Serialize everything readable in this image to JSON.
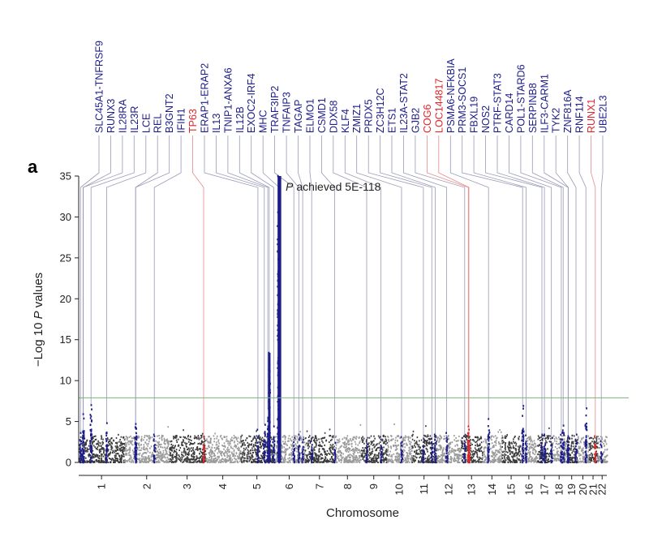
{
  "panel_label": "a",
  "chart_data": {
    "type": "scatter",
    "title": "",
    "xlabel": "Chromosome",
    "ylabel_prefix": "−Log 10 ",
    "ylabel_italic": "P",
    "ylabel_suffix": " values",
    "ylim": [
      0,
      35
    ],
    "yticks": [
      0,
      5,
      10,
      15,
      20,
      25,
      30,
      35
    ],
    "significance_line": 7.9,
    "annotation": {
      "italic": "P",
      "text": " achieved 5E-118",
      "chromosome": 6,
      "y": 33.7
    },
    "colors": {
      "chrom_dark": "#3a3a3a",
      "chrom_light": "#9a9a9a",
      "known_locus": "#1c1c8a",
      "new_locus": "#e0262b",
      "sig_line": "#7fae7f",
      "leader_known": "#9a9ab8",
      "leader_new": "#e88a8a"
    },
    "chromosomes": [
      {
        "label": "1",
        "len": 249
      },
      {
        "label": "2",
        "len": 243
      },
      {
        "label": "3",
        "len": 198
      },
      {
        "label": "4",
        "len": 191
      },
      {
        "label": "5",
        "len": 181
      },
      {
        "label": "6",
        "len": 171
      },
      {
        "label": "7",
        "len": 159
      },
      {
        "label": "8",
        "len": 146
      },
      {
        "label": "9",
        "len": 141
      },
      {
        "label": "10",
        "len": 136
      },
      {
        "label": "11",
        "len": 135
      },
      {
        "label": "12",
        "len": 134
      },
      {
        "label": "13",
        "len": 115
      },
      {
        "label": "14",
        "len": 107
      },
      {
        "label": "15",
        "len": 103
      },
      {
        "label": "16",
        "len": 90
      },
      {
        "label": "17",
        "len": 81
      },
      {
        "label": "18",
        "len": 78
      },
      {
        "label": "19",
        "len": 59
      },
      {
        "label": "20",
        "len": 63
      },
      {
        "label": "21",
        "len": 48
      },
      {
        "label": "22",
        "len": 51
      }
    ],
    "loci": [
      {
        "label": "SLC45A1-TNFRSF9",
        "chrom": 1,
        "pos": 10,
        "peak": 3.6,
        "novel": false
      },
      {
        "label": "RUNX3",
        "chrom": 1,
        "pos": 25,
        "peak": 3.0,
        "novel": false
      },
      {
        "label": "IL28RA",
        "chrom": 1,
        "pos": 24,
        "peak": 5.9,
        "novel": false
      },
      {
        "label": "IL23R",
        "chrom": 1,
        "pos": 67,
        "peak": 7.0,
        "novel": false
      },
      {
        "label": "LCE",
        "chrom": 1,
        "pos": 152,
        "peak": 4.8,
        "novel": false
      },
      {
        "label": "REL",
        "chrom": 2,
        "pos": 61,
        "peak": 4.3,
        "novel": false
      },
      {
        "label": "B3GNT2",
        "chrom": 2,
        "pos": 62,
        "peak": 4.7,
        "novel": false
      },
      {
        "label": "IFIH1",
        "chrom": 2,
        "pos": 163,
        "peak": 3.4,
        "novel": false
      },
      {
        "label": "TP63",
        "chrom": 3,
        "pos": 189,
        "peak": 3.0,
        "novel": true
      },
      {
        "label": "ERAP1-ERAP2",
        "chrom": 5,
        "pos": 96,
        "peak": 4.0,
        "novel": false
      },
      {
        "label": "IL13",
        "chrom": 5,
        "pos": 131,
        "peak": 4.6,
        "novel": false
      },
      {
        "label": "TNIP1-ANXA6",
        "chrom": 5,
        "pos": 150,
        "peak": 6.5,
        "novel": false
      },
      {
        "label": "IL12B",
        "chrom": 5,
        "pos": 158,
        "peak": 13.4,
        "novel": false
      },
      {
        "label": "EXOC2-IRF4",
        "chrom": 6,
        "pos": 1,
        "peak": 4.4,
        "novel": false
      },
      {
        "label": "MHC",
        "chrom": 6,
        "pos": 31,
        "peak": 35,
        "novel": false
      },
      {
        "label": "TRAF3IP2",
        "chrom": 6,
        "pos": 111,
        "peak": 3.0,
        "novel": false
      },
      {
        "label": "TNFAIP3",
        "chrom": 6,
        "pos": 138,
        "peak": 3.4,
        "novel": false
      },
      {
        "label": "TAGAP",
        "chrom": 6,
        "pos": 159,
        "peak": 2.8,
        "novel": false
      },
      {
        "label": "ELMO1",
        "chrom": 7,
        "pos": 37,
        "peak": 2.6,
        "novel": false
      },
      {
        "label": "CSMD1",
        "chrom": 8,
        "pos": 3,
        "peak": 2.4,
        "novel": false
      },
      {
        "label": "DDX58",
        "chrom": 9,
        "pos": 32,
        "peak": 2.6,
        "novel": false
      },
      {
        "label": "KLF4",
        "chrom": 9,
        "pos": 110,
        "peak": 2.8,
        "novel": false
      },
      {
        "label": "ZMIZ1",
        "chrom": 10,
        "pos": 81,
        "peak": 3.1,
        "novel": false
      },
      {
        "label": "PRDX5",
        "chrom": 11,
        "pos": 64,
        "peak": 2.8,
        "novel": false
      },
      {
        "label": "ZC3H12C",
        "chrom": 11,
        "pos": 110,
        "peak": 2.9,
        "novel": false
      },
      {
        "label": "ETS1",
        "chrom": 11,
        "pos": 128,
        "peak": 3.4,
        "novel": false
      },
      {
        "label": "IL23A-STAT2",
        "chrom": 12,
        "pos": 56,
        "peak": 3.6,
        "novel": false
      },
      {
        "label": "GJB2",
        "chrom": 13,
        "pos": 20,
        "peak": 3.2,
        "novel": false
      },
      {
        "label": "COG6",
        "chrom": 13,
        "pos": 40,
        "peak": 4.4,
        "novel": true
      },
      {
        "label": "LOC144817",
        "chrom": 13,
        "pos": 43,
        "peak": 3.6,
        "novel": true
      },
      {
        "label": "PSMA6-NFKBIA",
        "chrom": 14,
        "pos": 35,
        "peak": 5.3,
        "novel": false
      },
      {
        "label": "PRM3-SOCS1",
        "chrom": 16,
        "pos": 11,
        "peak": 6.9,
        "novel": false
      },
      {
        "label": "FBXL19",
        "chrom": 16,
        "pos": 30,
        "peak": 3.3,
        "novel": false
      },
      {
        "label": "NOS2",
        "chrom": 17,
        "pos": 26,
        "peak": 3.4,
        "novel": false
      },
      {
        "label": "PTRF-STAT3",
        "chrom": 17,
        "pos": 40,
        "peak": 3.4,
        "novel": false
      },
      {
        "label": "CARD14",
        "chrom": 17,
        "pos": 78,
        "peak": 3.0,
        "novel": false
      },
      {
        "label": "POL1-STARD6",
        "chrom": 18,
        "pos": 51,
        "peak": 3.6,
        "novel": false
      },
      {
        "label": "SERPINB8",
        "chrom": 18,
        "pos": 61,
        "peak": 4.5,
        "novel": false
      },
      {
        "label": "ILF3-CARM1",
        "chrom": 19,
        "pos": 10,
        "peak": 3.2,
        "novel": false
      },
      {
        "label": "TYK2",
        "chrom": 19,
        "pos": 11,
        "peak": 3.0,
        "novel": false
      },
      {
        "label": "ZNF816A",
        "chrom": 19,
        "pos": 53,
        "peak": 3.4,
        "novel": false
      },
      {
        "label": "RNF114",
        "chrom": 20,
        "pos": 48,
        "peak": 6.6,
        "novel": false
      },
      {
        "label": "RUNX1",
        "chrom": 21,
        "pos": 36,
        "peak": 3.2,
        "novel": true
      },
      {
        "label": "UBE2L3",
        "chrom": 22,
        "pos": 21,
        "peak": 2.6,
        "novel": false
      }
    ]
  }
}
